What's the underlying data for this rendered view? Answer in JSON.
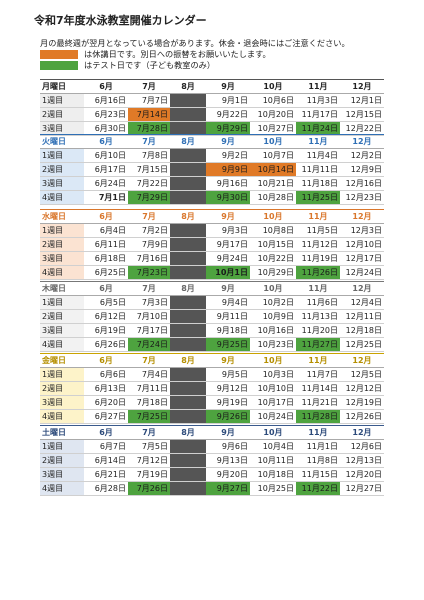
{
  "title": "令和7年度水泳教室開催カレンダー",
  "notes": {
    "line1": "月の最終週が翌月となっている場合があります。休会・退会時にはご注意ください。",
    "legend_holiday": "は休講日です。別日への振替をお願いいたします。",
    "legend_test": "はテスト日です（子ども教室のみ）"
  },
  "colors": {
    "holiday": "#e07a27",
    "test": "#4ea33f",
    "closed": "#555555"
  },
  "months": [
    "6月",
    "7月",
    "8月",
    "9月",
    "10月",
    "11月",
    "12月"
  ],
  "sections": [
    {
      "day": "月曜日",
      "color": "#555555",
      "bg": "#eeeeee",
      "hdrcolor": "#222222",
      "rows": [
        {
          "label": "1週目",
          "cells": [
            "6月16日",
            "7月7日",
            "",
            "9月1日",
            "10月6日",
            "11月3日",
            "12月1日"
          ],
          "marks": [
            "",
            "",
            "",
            "",
            "",
            "",
            ""
          ],
          "bold": [
            0,
            0,
            0,
            0,
            0,
            0,
            0
          ]
        },
        {
          "label": "2週目",
          "cells": [
            "6月23日",
            "7月14日",
            "",
            "9月22日",
            "10月20日",
            "11月17日",
            "12月15日"
          ],
          "marks": [
            "",
            "h",
            "",
            "",
            "",
            "",
            ""
          ],
          "bold": [
            0,
            0,
            0,
            0,
            0,
            0,
            0
          ]
        },
        {
          "label": "3週目",
          "cells": [
            "6月30日",
            "7月28日",
            "",
            "9月29日",
            "10月27日",
            "11月24日",
            "12月22日"
          ],
          "marks": [
            "",
            "t",
            "",
            "t",
            "",
            "t",
            ""
          ],
          "bold": [
            0,
            0,
            0,
            0,
            0,
            0,
            0
          ]
        }
      ]
    },
    {
      "day": "火曜日",
      "color": "#2f6fb5",
      "bg": "#dbe8f6",
      "hdrcolor": "#2f6fb5",
      "rows": [
        {
          "label": "1週目",
          "cells": [
            "6月10日",
            "7月8日",
            "",
            "9月2日",
            "10月7日",
            "11月4日",
            "12月2日"
          ],
          "marks": [
            "",
            "",
            "",
            "",
            "",
            "",
            ""
          ],
          "bold": [
            0,
            0,
            0,
            0,
            0,
            0,
            0
          ]
        },
        {
          "label": "2週目",
          "cells": [
            "6月17日",
            "7月15日",
            "",
            "9月9日",
            "10月14日",
            "11月11日",
            "12月9日"
          ],
          "marks": [
            "",
            "",
            "",
            "h",
            "h",
            "",
            ""
          ],
          "bold": [
            0,
            0,
            0,
            0,
            0,
            0,
            0
          ]
        },
        {
          "label": "3週目",
          "cells": [
            "6月24日",
            "7月22日",
            "",
            "9月16日",
            "10月21日",
            "11月18日",
            "12月16日"
          ],
          "marks": [
            "",
            "",
            "",
            "",
            "",
            "",
            ""
          ],
          "bold": [
            0,
            0,
            0,
            0,
            0,
            0,
            0
          ]
        },
        {
          "label": "4週目",
          "cells": [
            "7月1日",
            "7月29日",
            "",
            "9月30日",
            "10月28日",
            "11月25日",
            "12月23日"
          ],
          "marks": [
            "",
            "t",
            "",
            "t",
            "",
            "t",
            ""
          ],
          "bold": [
            1,
            0,
            0,
            0,
            0,
            0,
            0
          ]
        }
      ]
    },
    {
      "day": "水曜日",
      "color": "#d9762b",
      "bg": "#fbe3d2",
      "hdrcolor": "#d9762b",
      "rows": [
        {
          "label": "1週目",
          "cells": [
            "6月4日",
            "7月2日",
            "",
            "9月3日",
            "10月8日",
            "11月5日",
            "12月3日"
          ],
          "marks": [
            "",
            "",
            "",
            "",
            "",
            "",
            ""
          ],
          "bold": [
            0,
            0,
            0,
            0,
            0,
            0,
            0
          ]
        },
        {
          "label": "2週目",
          "cells": [
            "6月11日",
            "7月9日",
            "",
            "9月17日",
            "10月15日",
            "11月12日",
            "12月10日"
          ],
          "marks": [
            "",
            "",
            "",
            "",
            "",
            "",
            ""
          ],
          "bold": [
            0,
            0,
            0,
            0,
            0,
            0,
            0
          ]
        },
        {
          "label": "3週目",
          "cells": [
            "6月18日",
            "7月16日",
            "",
            "9月24日",
            "10月22日",
            "11月19日",
            "12月17日"
          ],
          "marks": [
            "",
            "",
            "",
            "",
            "",
            "",
            ""
          ],
          "bold": [
            0,
            0,
            0,
            0,
            0,
            0,
            0
          ]
        },
        {
          "label": "4週目",
          "cells": [
            "6月25日",
            "7月23日",
            "",
            "10月1日",
            "10月29日",
            "11月26日",
            "12月24日"
          ],
          "marks": [
            "",
            "t",
            "",
            "t",
            "",
            "t",
            ""
          ],
          "bold": [
            0,
            0,
            0,
            1,
            0,
            0,
            0
          ]
        }
      ]
    },
    {
      "day": "木曜日",
      "color": "#777777",
      "bg": "#f2f2f2",
      "hdrcolor": "#666666",
      "rows": [
        {
          "label": "1週目",
          "cells": [
            "6月5日",
            "7月3日",
            "",
            "9月4日",
            "10月2日",
            "11月6日",
            "12月4日"
          ],
          "marks": [
            "",
            "",
            "",
            "",
            "",
            "",
            ""
          ],
          "bold": [
            0,
            0,
            0,
            0,
            0,
            0,
            0
          ]
        },
        {
          "label": "2週目",
          "cells": [
            "6月12日",
            "7月10日",
            "",
            "9月11日",
            "10月9日",
            "11月13日",
            "12月11日"
          ],
          "marks": [
            "",
            "",
            "",
            "",
            "",
            "",
            ""
          ],
          "bold": [
            0,
            0,
            0,
            0,
            0,
            0,
            0
          ]
        },
        {
          "label": "3週目",
          "cells": [
            "6月19日",
            "7月17日",
            "",
            "9月18日",
            "10月16日",
            "11月20日",
            "12月18日"
          ],
          "marks": [
            "",
            "",
            "",
            "",
            "",
            "",
            ""
          ],
          "bold": [
            0,
            0,
            0,
            0,
            0,
            0,
            0
          ]
        },
        {
          "label": "4週目",
          "cells": [
            "6月26日",
            "7月24日",
            "",
            "9月25日",
            "10月23日",
            "11月27日",
            "12月25日"
          ],
          "marks": [
            "",
            "t",
            "",
            "t",
            "",
            "t",
            ""
          ],
          "bold": [
            0,
            0,
            0,
            0,
            0,
            0,
            0
          ]
        }
      ]
    },
    {
      "day": "金曜日",
      "color": "#c9a300",
      "bg": "#fdf3c9",
      "hdrcolor": "#b58f00",
      "rows": [
        {
          "label": "1週目",
          "cells": [
            "6月6日",
            "7月4日",
            "",
            "9月5日",
            "10月3日",
            "11月7日",
            "12月5日"
          ],
          "marks": [
            "",
            "",
            "",
            "",
            "",
            "",
            ""
          ],
          "bold": [
            0,
            0,
            0,
            0,
            0,
            0,
            0
          ]
        },
        {
          "label": "2週目",
          "cells": [
            "6月13日",
            "7月11日",
            "",
            "9月12日",
            "10月10日",
            "11月14日",
            "12月12日"
          ],
          "marks": [
            "",
            "",
            "",
            "",
            "",
            "",
            ""
          ],
          "bold": [
            0,
            0,
            0,
            0,
            0,
            0,
            0
          ]
        },
        {
          "label": "3週目",
          "cells": [
            "6月20日",
            "7月18日",
            "",
            "9月19日",
            "10月17日",
            "11月21日",
            "12月19日"
          ],
          "marks": [
            "",
            "",
            "",
            "",
            "",
            "",
            ""
          ],
          "bold": [
            0,
            0,
            0,
            0,
            0,
            0,
            0
          ]
        },
        {
          "label": "4週目",
          "cells": [
            "6月27日",
            "7月25日",
            "",
            "9月26日",
            "10月24日",
            "11月28日",
            "12月26日"
          ],
          "marks": [
            "",
            "t",
            "",
            "t",
            "",
            "t",
            ""
          ],
          "bold": [
            0,
            0,
            0,
            0,
            0,
            0,
            0
          ]
        }
      ]
    },
    {
      "day": "土曜日",
      "color": "#3a5a8c",
      "bg": "#dfe6f1",
      "hdrcolor": "#2c4a7a",
      "rows": [
        {
          "label": "1週目",
          "cells": [
            "6月7日",
            "7月5日",
            "",
            "9月6日",
            "10月4日",
            "11月1日",
            "12月6日"
          ],
          "marks": [
            "",
            "",
            "",
            "",
            "",
            "",
            ""
          ],
          "bold": [
            0,
            0,
            0,
            0,
            0,
            0,
            0
          ]
        },
        {
          "label": "2週目",
          "cells": [
            "6月14日",
            "7月12日",
            "",
            "9月13日",
            "10月11日",
            "11月8日",
            "12月13日"
          ],
          "marks": [
            "",
            "",
            "",
            "",
            "",
            "",
            ""
          ],
          "bold": [
            0,
            0,
            0,
            0,
            0,
            0,
            0
          ]
        },
        {
          "label": "3週目",
          "cells": [
            "6月21日",
            "7月19日",
            "",
            "9月20日",
            "10月18日",
            "11月15日",
            "12月20日"
          ],
          "marks": [
            "",
            "",
            "",
            "",
            "",
            "",
            ""
          ],
          "bold": [
            0,
            0,
            0,
            0,
            0,
            0,
            0
          ]
        },
        {
          "label": "4週目",
          "cells": [
            "6月28日",
            "7月26日",
            "",
            "9月27日",
            "10月25日",
            "11月22日",
            "12月27日"
          ],
          "marks": [
            "",
            "t",
            "",
            "t",
            "",
            "t",
            ""
          ],
          "bold": [
            0,
            0,
            0,
            0,
            0,
            0,
            0
          ]
        }
      ]
    }
  ]
}
